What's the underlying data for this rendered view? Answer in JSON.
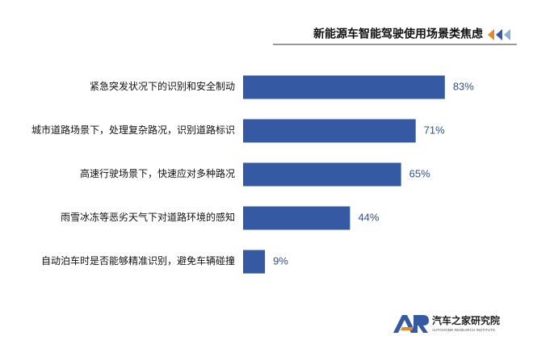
{
  "chart_data": {
    "type": "barh",
    "title": "新能源车智能驾驶使用场景类焦虑",
    "categories": [
      "紧急突发状况下的识别和安全制动",
      "城市道路场景下，处理复杂路况，识别道路标识",
      "高速行驶场景下，快速应对多种路况",
      "雨雪冰冻等恶劣天气下对道路环境的感知",
      "自动泊车时是否能够精准识别，避免车辆碰撞"
    ],
    "values": [
      83,
      71,
      65,
      44,
      9
    ],
    "value_labels": [
      "83%",
      "71%",
      "65%",
      "44%",
      "9%"
    ],
    "color": "#3559a2"
  },
  "logo": {
    "name": "汽车之家研究院",
    "subtitle": "AUTOHOME RESEARCH INSTITUTE"
  }
}
